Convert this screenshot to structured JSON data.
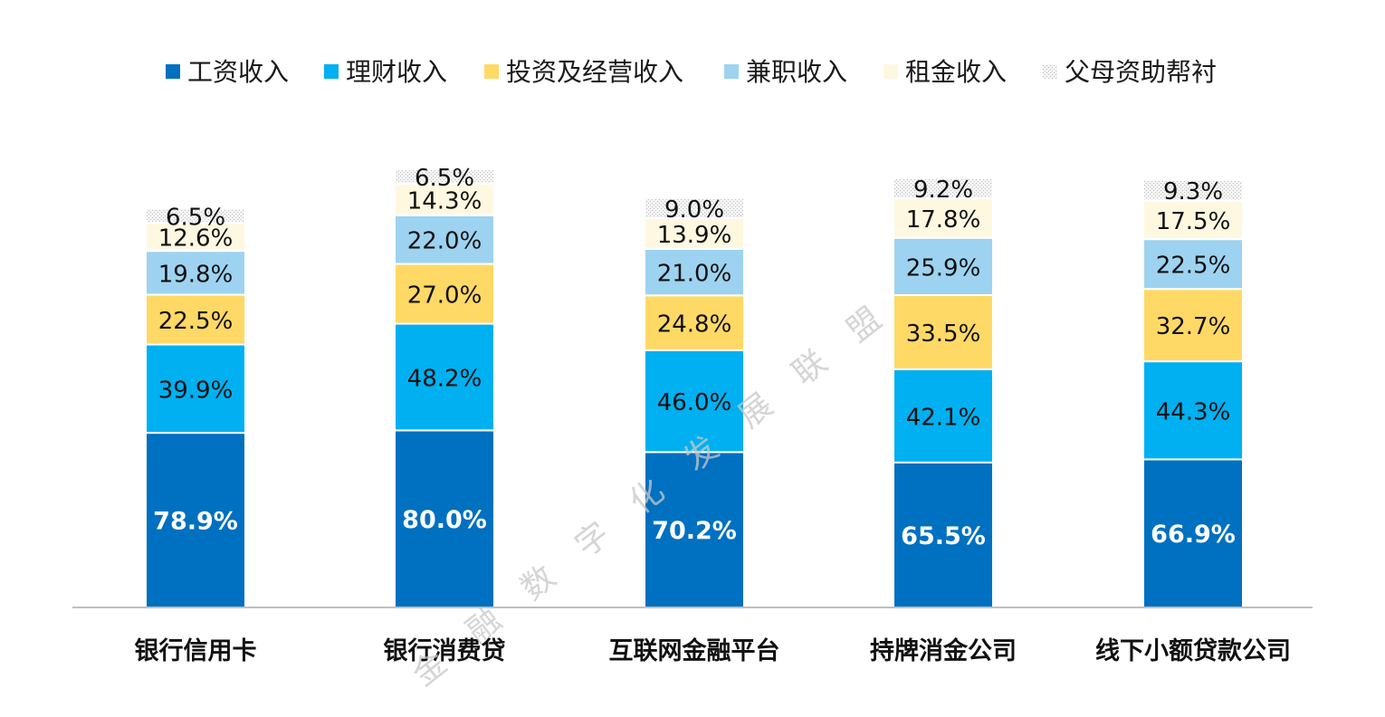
{
  "chart_data": {
    "type": "bar",
    "stacked": true,
    "categories": [
      "银行信用卡",
      "银行消费贷",
      "互联网金融平台",
      "持牌消金公司",
      "线下小额贷款公司"
    ],
    "series": [
      {
        "name": "工资收入",
        "color": "#0070C0",
        "values": [
          78.9,
          80.0,
          70.2,
          65.5,
          66.9
        ],
        "labels": [
          "78.9%",
          "80.0%",
          "70.2%",
          "65.5%",
          "66.9%"
        ]
      },
      {
        "name": "理财收入",
        "color": "#00B0F0",
        "values": [
          39.9,
          48.2,
          46.0,
          42.1,
          44.3
        ],
        "labels": [
          "39.9%",
          "48.2%",
          "46.0%",
          "42.1%",
          "44.3%"
        ]
      },
      {
        "name": "投资及经营收入",
        "color": "#FFD966",
        "values": [
          22.5,
          27.0,
          24.8,
          33.5,
          32.7
        ],
        "labels": [
          "22.5%",
          "27.0%",
          "24.8%",
          "33.5%",
          "32.7%"
        ]
      },
      {
        "name": "兼职收入",
        "color": "#9DD3F0",
        "values": [
          19.8,
          22.0,
          21.0,
          25.9,
          22.5
        ],
        "labels": [
          "19.8%",
          "22.0%",
          "21.0%",
          "25.9%",
          "22.5%"
        ]
      },
      {
        "name": "租金收入",
        "color": "#FFF8E1",
        "values": [
          12.6,
          14.3,
          13.9,
          17.8,
          17.5
        ],
        "labels": [
          "12.6%",
          "14.3%",
          "13.9%",
          "17.8%",
          "17.5%"
        ]
      },
      {
        "name": "父母资助帮衬",
        "color": "#EFEFEF",
        "values": [
          6.5,
          6.5,
          9.0,
          9.2,
          9.3
        ],
        "labels": [
          "6.5%",
          "6.5%",
          "9.0%",
          "9.2%",
          "9.3%"
        ]
      }
    ],
    "legend_position": "top",
    "grid": false,
    "watermark": "金融数字化发展联盟"
  }
}
